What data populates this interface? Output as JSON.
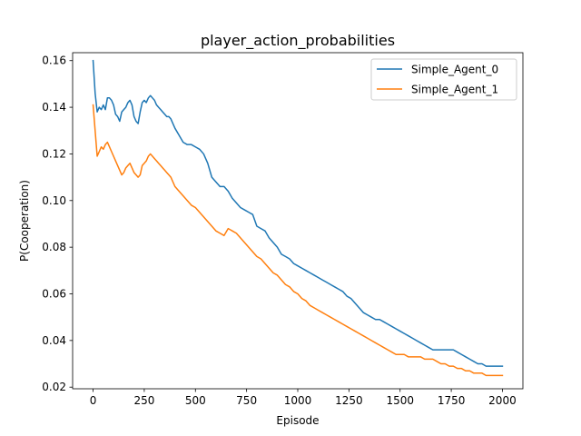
{
  "chart_data": {
    "type": "line",
    "title": "player_action_probabilities",
    "xlabel": "Episode",
    "ylabel": "P(Cooperation)",
    "xlim": [
      -100,
      2100
    ],
    "ylim": [
      0.0193,
      0.1634
    ],
    "xticks": [
      0,
      250,
      500,
      750,
      1000,
      1250,
      1500,
      1750,
      2000
    ],
    "yticks": [
      0.02,
      0.04,
      0.06,
      0.08,
      0.1,
      0.12,
      0.14,
      0.16
    ],
    "xtick_labels": [
      "0",
      "250",
      "500",
      "750",
      "1000",
      "1250",
      "1500",
      "1750",
      "2000"
    ],
    "ytick_labels": [
      "0.02",
      "0.04",
      "0.06",
      "0.08",
      "0.10",
      "0.12",
      "0.14",
      "0.16"
    ],
    "grid": false,
    "legend_position": "top-right",
    "series": [
      {
        "name": "Simple_Agent_0",
        "color": "#1f77b4",
        "x": [
          0,
          10,
          20,
          30,
          40,
          50,
          60,
          70,
          80,
          90,
          100,
          110,
          120,
          130,
          140,
          150,
          160,
          170,
          180,
          190,
          200,
          210,
          220,
          230,
          240,
          250,
          260,
          270,
          280,
          290,
          300,
          310,
          320,
          330,
          340,
          350,
          360,
          370,
          380,
          390,
          400,
          420,
          440,
          460,
          480,
          500,
          520,
          540,
          560,
          580,
          600,
          620,
          640,
          660,
          680,
          700,
          720,
          740,
          760,
          780,
          800,
          820,
          840,
          860,
          880,
          900,
          920,
          940,
          960,
          980,
          1000,
          1020,
          1040,
          1060,
          1080,
          1100,
          1120,
          1140,
          1160,
          1180,
          1200,
          1220,
          1240,
          1260,
          1280,
          1300,
          1320,
          1340,
          1360,
          1380,
          1400,
          1420,
          1440,
          1460,
          1480,
          1500,
          1520,
          1540,
          1560,
          1580,
          1600,
          1620,
          1640,
          1660,
          1680,
          1700,
          1720,
          1740,
          1760,
          1780,
          1800,
          1820,
          1840,
          1860,
          1880,
          1900,
          1920,
          1940,
          1960,
          1980,
          2000
        ],
        "y": [
          0.16,
          0.146,
          0.138,
          0.14,
          0.139,
          0.141,
          0.139,
          0.144,
          0.144,
          0.143,
          0.141,
          0.137,
          0.136,
          0.134,
          0.138,
          0.139,
          0.14,
          0.142,
          0.143,
          0.141,
          0.136,
          0.134,
          0.133,
          0.138,
          0.142,
          0.143,
          0.142,
          0.144,
          0.145,
          0.144,
          0.143,
          0.141,
          0.14,
          0.139,
          0.138,
          0.137,
          0.136,
          0.136,
          0.135,
          0.133,
          0.131,
          0.128,
          0.125,
          0.124,
          0.124,
          0.123,
          0.122,
          0.12,
          0.116,
          0.11,
          0.108,
          0.106,
          0.106,
          0.104,
          0.101,
          0.099,
          0.097,
          0.096,
          0.095,
          0.094,
          0.089,
          0.088,
          0.087,
          0.084,
          0.082,
          0.08,
          0.077,
          0.076,
          0.075,
          0.073,
          0.072,
          0.071,
          0.07,
          0.069,
          0.068,
          0.067,
          0.066,
          0.065,
          0.064,
          0.063,
          0.062,
          0.061,
          0.059,
          0.058,
          0.056,
          0.054,
          0.052,
          0.051,
          0.05,
          0.049,
          0.049,
          0.048,
          0.047,
          0.046,
          0.045,
          0.044,
          0.043,
          0.042,
          0.041,
          0.04,
          0.039,
          0.038,
          0.037,
          0.036,
          0.036,
          0.036,
          0.036,
          0.036,
          0.036,
          0.035,
          0.034,
          0.033,
          0.032,
          0.031,
          0.03,
          0.03,
          0.029,
          0.029,
          0.029,
          0.029,
          0.029
        ]
      },
      {
        "name": "Simple_Agent_1",
        "color": "#ff7f0e",
        "x": [
          0,
          10,
          20,
          30,
          40,
          50,
          60,
          70,
          80,
          90,
          100,
          110,
          120,
          130,
          140,
          150,
          160,
          170,
          180,
          190,
          200,
          210,
          220,
          230,
          240,
          250,
          260,
          270,
          280,
          290,
          300,
          310,
          320,
          330,
          340,
          350,
          360,
          370,
          380,
          390,
          400,
          420,
          440,
          460,
          480,
          500,
          520,
          540,
          560,
          580,
          600,
          620,
          640,
          660,
          680,
          700,
          720,
          740,
          760,
          780,
          800,
          820,
          840,
          860,
          880,
          900,
          920,
          940,
          960,
          980,
          1000,
          1020,
          1040,
          1060,
          1080,
          1100,
          1120,
          1140,
          1160,
          1180,
          1200,
          1220,
          1240,
          1260,
          1280,
          1300,
          1320,
          1340,
          1360,
          1380,
          1400,
          1420,
          1440,
          1460,
          1480,
          1500,
          1520,
          1540,
          1560,
          1580,
          1600,
          1620,
          1640,
          1660,
          1680,
          1700,
          1720,
          1740,
          1760,
          1780,
          1800,
          1820,
          1840,
          1860,
          1880,
          1900,
          1920,
          1940,
          1960,
          1980,
          2000
        ],
        "y": [
          0.141,
          0.13,
          0.119,
          0.121,
          0.123,
          0.122,
          0.124,
          0.125,
          0.123,
          0.121,
          0.119,
          0.117,
          0.115,
          0.113,
          0.111,
          0.112,
          0.114,
          0.115,
          0.116,
          0.114,
          0.112,
          0.111,
          0.11,
          0.111,
          0.115,
          0.116,
          0.117,
          0.119,
          0.12,
          0.119,
          0.118,
          0.117,
          0.116,
          0.115,
          0.114,
          0.113,
          0.112,
          0.111,
          0.11,
          0.108,
          0.106,
          0.104,
          0.102,
          0.1,
          0.098,
          0.097,
          0.095,
          0.093,
          0.091,
          0.089,
          0.087,
          0.086,
          0.085,
          0.088,
          0.087,
          0.086,
          0.084,
          0.082,
          0.08,
          0.078,
          0.076,
          0.075,
          0.073,
          0.071,
          0.069,
          0.068,
          0.066,
          0.064,
          0.063,
          0.061,
          0.06,
          0.058,
          0.057,
          0.055,
          0.054,
          0.053,
          0.052,
          0.051,
          0.05,
          0.049,
          0.048,
          0.047,
          0.046,
          0.045,
          0.044,
          0.043,
          0.042,
          0.041,
          0.04,
          0.039,
          0.038,
          0.037,
          0.036,
          0.035,
          0.034,
          0.034,
          0.034,
          0.033,
          0.033,
          0.033,
          0.033,
          0.032,
          0.032,
          0.032,
          0.031,
          0.03,
          0.03,
          0.029,
          0.029,
          0.028,
          0.028,
          0.027,
          0.027,
          0.026,
          0.026,
          0.026,
          0.025,
          0.025,
          0.025,
          0.025,
          0.025
        ]
      }
    ]
  }
}
